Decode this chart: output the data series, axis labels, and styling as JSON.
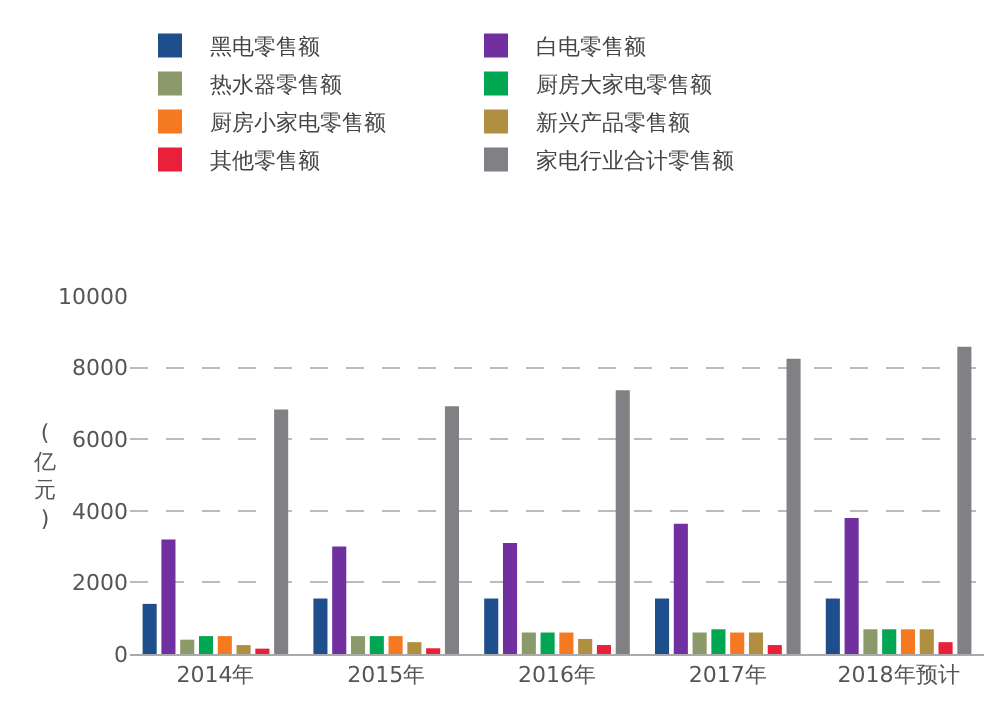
{
  "chart_data": {
    "type": "bar",
    "ylabel": "(亿元)",
    "categories": [
      "2014年",
      "2015年",
      "2016年",
      "2017年",
      "2018年预计"
    ],
    "series": [
      {
        "name": "黑电零售额",
        "color": "#1f4e8c",
        "values": [
          1400,
          1550,
          1550,
          1550,
          1550
        ]
      },
      {
        "name": "白电零售额",
        "color": "#7030a0",
        "values": [
          3200,
          3000,
          3100,
          3640,
          3800
        ]
      },
      {
        "name": "热水器零售额",
        "color": "#8a9a6a",
        "values": [
          400,
          500,
          600,
          600,
          690
        ]
      },
      {
        "name": "厨房大家电零售额",
        "color": "#00a651",
        "values": [
          500,
          500,
          600,
          690,
          690
        ]
      },
      {
        "name": "厨房小家电零售额",
        "color": "#f47920",
        "values": [
          500,
          500,
          600,
          600,
          690
        ]
      },
      {
        "name": "新兴产品零售额",
        "color": "#b08f40",
        "values": [
          250,
          330,
          420,
          600,
          690
        ]
      },
      {
        "name": "其他零售额",
        "color": "#e8203a",
        "values": [
          150,
          160,
          250,
          250,
          330
        ]
      },
      {
        "name": "家电行业合计零售额",
        "color": "#808085",
        "values": [
          6830,
          6920,
          7370,
          8250,
          8580
        ]
      }
    ],
    "ylim": [
      0,
      10000
    ],
    "yticks": [
      0,
      2000,
      4000,
      6000,
      8000,
      10000
    ],
    "grid": "y",
    "legend": "top"
  }
}
